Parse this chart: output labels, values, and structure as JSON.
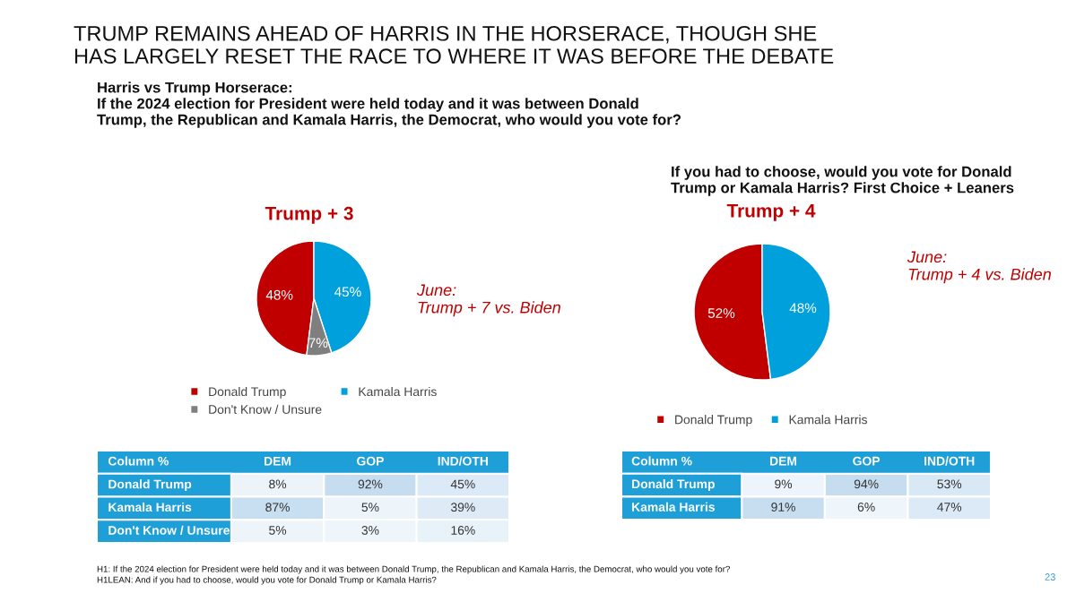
{
  "chart_data": [
    {
      "type": "pie",
      "title": "TRUMP REMAINS AHEAD OF HARRIS IN THE HORSERACE, THOUGH SHE\nHAS LARGELY RESET THE RACE TO WHERE IT WAS BEFORE THE DEBATE",
      "subtitle": "Harris vs Trump Horserace:\nIf the 2024 election for President were held today and it was between Donald\nTrump, the Republican and Kamala Harris, the Democrat, who would you vote for?",
      "categories": [
        "Donald Trump",
        "Kamala Harris",
        "Don't Know / Unsure"
      ],
      "values": [
        48,
        45,
        7
      ],
      "colors": [
        "#c00000",
        "#00a0dc",
        "#7f7f7f"
      ],
      "value_labels": [
        "48%",
        "45%",
        "7%"
      ],
      "legend": "bottom",
      "annotations": [
        "Trump + 3",
        "June:\nTrump + 7 vs. Biden"
      ]
    },
    {
      "type": "heatmap",
      "title": "Column %",
      "categories": [
        "DEM",
        "GOP",
        "IND/OTH"
      ],
      "y_categories": [
        "Donald Trump",
        "Kamala Harris",
        "Don't Know / Unsure"
      ],
      "cells": [
        [
          8,
          92,
          45
        ],
        [
          87,
          5,
          39
        ],
        [
          5,
          3,
          16
        ]
      ],
      "cell_labels": [
        [
          "8%",
          "92%",
          "45%"
        ],
        [
          "87%",
          "5%",
          "39%"
        ],
        [
          "5%",
          "3%",
          "16%"
        ]
      ]
    },
    {
      "type": "pie",
      "title": "If you had to choose, would you vote for Donald\nTrump or Kamala Harris? First Choice + Leaners",
      "categories": [
        "Donald Trump",
        "Kamala Harris"
      ],
      "values": [
        52,
        48
      ],
      "colors": [
        "#c00000",
        "#00a0dc"
      ],
      "value_labels": [
        "52%",
        "48%"
      ],
      "legend": "bottom",
      "annotations": [
        "Trump + 4",
        "June:\nTrump + 4 vs. Biden"
      ]
    },
    {
      "type": "heatmap",
      "title": "Column %",
      "categories": [
        "DEM",
        "GOP",
        "IND/OTH"
      ],
      "y_categories": [
        "Donald Trump",
        "Kamala Harris"
      ],
      "cells": [
        [
          9,
          94,
          53
        ],
        [
          91,
          6,
          47
        ]
      ],
      "cell_labels": [
        [
          "9%",
          "94%",
          "53%"
        ],
        [
          "91%",
          "6%",
          "47%"
        ]
      ],
      "annotations": [
        "H1: If the 2024 election for President were held today and it was between Donald Trump, the Republican and Kamala Harris, the Democrat, who would you vote for?",
        "H1LEAN: And if you had to choose, would you vote for Donald Trump or Kamala Harris?",
        "23"
      ]
    }
  ]
}
